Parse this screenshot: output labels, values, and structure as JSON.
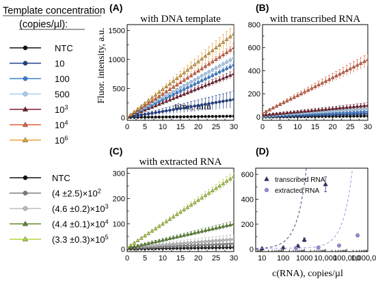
{
  "legend_top": {
    "title_line1": "Template concentration",
    "title_line2": "(copies/µl):",
    "items": [
      {
        "label": "NTC",
        "color": "#111111",
        "marker": "circle"
      },
      {
        "label": "10",
        "color": "#1f3f8c",
        "marker": "circle"
      },
      {
        "label": "100",
        "color": "#3a7fd0",
        "marker": "circle"
      },
      {
        "label": "500",
        "color": "#a9cdf0",
        "marker": "circle"
      },
      {
        "label": "10",
        "sup": "3",
        "color": "#7a1c2e",
        "marker": "triangle"
      },
      {
        "label": "10",
        "sup": "4",
        "color": "#e0603a",
        "marker": "triangle"
      },
      {
        "label": "10",
        "sup": "6",
        "color": "#e8a53a",
        "marker": "triangle"
      }
    ]
  },
  "legend_bottom": {
    "items": [
      {
        "label": "NTC",
        "color": "#111111",
        "marker": "circle"
      },
      {
        "label": "(4 ±2.5)×10",
        "sup": "2",
        "color": "#7a7a7a",
        "marker": "circle"
      },
      {
        "label": "(4.6 ±0.2)×10",
        "sup": "3",
        "color": "#bdbdbd",
        "marker": "circle"
      },
      {
        "label": "(4.4 ±0.1)×10",
        "sup": "4",
        "color": "#5a8a2a",
        "marker": "triangle"
      },
      {
        "label": "(3.3 ±0.3)×10",
        "sup": "5",
        "color": "#b0d640",
        "marker": "triangle"
      }
    ]
  },
  "chart_data": [
    {
      "panel": "(A)",
      "type": "line",
      "title": "with DNA template",
      "xlabel": "time, min",
      "ylabel": "Fluor. intensity, a.u.",
      "xlim": [
        0,
        30
      ],
      "ylim": [
        -50,
        1600
      ],
      "xticks": [
        0,
        5,
        10,
        15,
        20,
        25,
        30
      ],
      "yticks": [
        0,
        500,
        1000,
        1500
      ],
      "series": [
        {
          "name": "10",
          "slope": 48,
          "err": 0.1,
          "color": "#e8a53a",
          "marker": "triangle",
          "sup": "6"
        },
        {
          "name": "10",
          "slope": 40,
          "err": 0.05,
          "color": "#e0603a",
          "marker": "triangle",
          "sup": "4"
        },
        {
          "name": "500",
          "slope": 34,
          "err": 0.04,
          "color": "#a9cdf0",
          "marker": "circle"
        },
        {
          "name": "100",
          "slope": 30,
          "err": 0.05,
          "color": "#3a7fd0",
          "marker": "circle"
        },
        {
          "name": "10",
          "slope": 25,
          "err": 0.08,
          "color": "#7a1c2e",
          "marker": "triangle",
          "sup": "3"
        },
        {
          "name": "10",
          "slope": 10.3,
          "err": 0.45,
          "color": "#1f3f8c",
          "marker": "circle"
        },
        {
          "name": "NTC",
          "slope": 0.7,
          "err": 0.5,
          "color": "#111111",
          "marker": "circle"
        }
      ]
    },
    {
      "panel": "(B)",
      "type": "line",
      "title": "with transcribed RNA",
      "xlabel": "",
      "ylabel": "",
      "xlim": [
        0,
        30
      ],
      "ylim": [
        -30,
        800
      ],
      "xticks": [
        0,
        5,
        10,
        15,
        20,
        25,
        30
      ],
      "yticks": [
        0,
        200,
        400,
        600,
        800
      ],
      "series": [
        {
          "name": "10",
          "slope": 15.5,
          "offset": 30,
          "err": 0.1,
          "color": "#e0603a",
          "marker": "triangle",
          "sup": "4"
        },
        {
          "name": "10",
          "slope": 2.8,
          "offset": 15,
          "err": 0.2,
          "color": "#7a1c2e",
          "marker": "triangle",
          "sup": "3"
        },
        {
          "name": "500",
          "slope": 2.2,
          "offset": 5,
          "err": 0.2,
          "color": "#a9cdf0",
          "marker": "circle"
        },
        {
          "name": "100",
          "slope": 1.4,
          "offset": 2,
          "err": 0.3,
          "color": "#3a7fd0",
          "marker": "circle"
        },
        {
          "name": "10",
          "slope": 0.9,
          "offset": 0,
          "err": 0.3,
          "color": "#1f3f8c",
          "marker": "circle"
        },
        {
          "name": "NTC",
          "slope": 0.3,
          "offset": -2,
          "err": 0.5,
          "color": "#111111",
          "marker": "circle"
        }
      ]
    },
    {
      "panel": "(C)",
      "type": "line",
      "title": "with extracted RNA",
      "xlabel": "",
      "ylabel": "",
      "xlim": [
        0,
        30
      ],
      "ylim": [
        -10,
        320
      ],
      "xticks": [
        0,
        5,
        10,
        15,
        20,
        25,
        30
      ],
      "yticks": [
        0,
        100,
        200,
        300
      ],
      "series": [
        {
          "name": "(3.3 ±0.3)×10",
          "slope": 9.4,
          "offset": 5,
          "err": 0.05,
          "color": "#b0d640",
          "marker": "triangle",
          "sup": "5"
        },
        {
          "name": "(4.4 ±0.1)×10",
          "slope": 3.2,
          "offset": 3,
          "err": 0.08,
          "color": "#5a8a2a",
          "marker": "triangle",
          "sup": "4"
        },
        {
          "name": "(4.6 ±0.2)×10",
          "slope": 1.1,
          "offset": 5,
          "err": 0.4,
          "color": "#bdbdbd",
          "marker": "circle",
          "sup": "3"
        },
        {
          "name": "(4 ±2.5)×10",
          "slope": 0.6,
          "offset": 3,
          "err": 0.6,
          "color": "#7a7a7a",
          "marker": "circle",
          "sup": "2"
        },
        {
          "name": "NTC",
          "slope": 0.2,
          "offset": 0,
          "err": 0.6,
          "color": "#111111",
          "marker": "circle"
        }
      ]
    },
    {
      "panel": "(D)",
      "type": "scatter",
      "xscale": "log",
      "xlabel": "c(RNA), copies/µl",
      "ylabel": "",
      "xlim": [
        5,
        1000000
      ],
      "ylim": [
        -20,
        650
      ],
      "xticks": [
        10,
        100,
        1000,
        10000,
        100000,
        1000000
      ],
      "xticklabels": [
        "10",
        "100",
        "1000",
        "10,000",
        "100,000",
        "1,000,000"
      ],
      "yticks": [
        0,
        200,
        400,
        600
      ],
      "legend": [
        "transcribed RNA",
        "extracted RNA"
      ],
      "series": [
        {
          "name": "transcribed RNA",
          "color": "#3d2a6e",
          "marker": "triangle",
          "x": [
            10,
            100,
            500,
            1000,
            10000
          ],
          "y": [
            5,
            12,
            25,
            75,
            520
          ],
          "yerr": [
            4,
            6,
            8,
            15,
            60
          ]
        },
        {
          "name": "extracted RNA",
          "color": "#9a88e0",
          "marker": "circle",
          "x": [
            400,
            4600,
            44000,
            330000
          ],
          "y": [
            8,
            12,
            28,
            110
          ],
          "yerr": [
            5,
            5,
            6,
            12
          ]
        }
      ]
    }
  ]
}
